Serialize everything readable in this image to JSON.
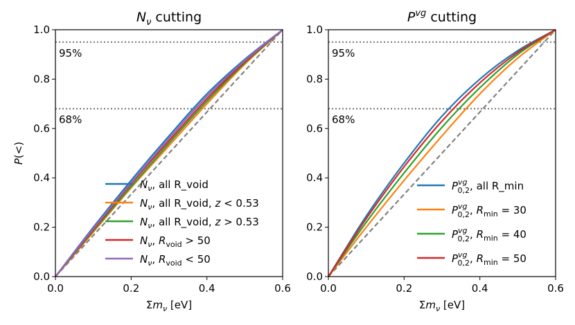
{
  "chart_data": [
    {
      "type": "line",
      "title": "N_ν cutting",
      "title_parts": {
        "main": "N",
        "sub": "ν",
        "rest": " cutting"
      },
      "xlabel": "Σm_ν [eV]",
      "ylabel": "P(<)",
      "xlim": [
        0.0,
        0.6
      ],
      "ylim": [
        0.0,
        1.0
      ],
      "xticks": [
        "0.0",
        "0.2",
        "0.4",
        "0.6"
      ],
      "yticks": [
        "0.0",
        "0.2",
        "0.4",
        "0.6",
        "0.8",
        "1.0"
      ],
      "grid": false,
      "legend_position": "lower-right",
      "hlines": [
        {
          "y": 0.95,
          "label": "95%",
          "color": "#808080",
          "style": "dotted"
        },
        {
          "y": 0.68,
          "label": "68%",
          "color": "#808080",
          "style": "dotted"
        }
      ],
      "reference_line": {
        "x": [
          0.0,
          0.6
        ],
        "y": [
          0.0,
          1.0
        ],
        "color": "#808080",
        "style": "dashed"
      },
      "x": [
        0.0,
        0.1,
        0.2,
        0.3,
        0.4,
        0.5,
        0.6
      ],
      "series": [
        {
          "name": "N_ν, all R_void",
          "color": "#1f77b4",
          "values": [
            0.0,
            0.2,
            0.39,
            0.57,
            0.74,
            0.88,
            1.0
          ]
        },
        {
          "name": "N_ν, all R_void, z < 0.53",
          "color": "#ff7f0e",
          "values": [
            0.0,
            0.18,
            0.36,
            0.53,
            0.7,
            0.86,
            1.0
          ]
        },
        {
          "name": "N_ν, all R_void, z > 0.53",
          "color": "#2ca02c",
          "values": [
            0.0,
            0.185,
            0.365,
            0.54,
            0.71,
            0.865,
            1.0
          ]
        },
        {
          "name": "N_ν, R_void > 50",
          "color": "#d62728",
          "values": [
            0.0,
            0.19,
            0.375,
            0.55,
            0.72,
            0.87,
            1.0
          ]
        },
        {
          "name": "N_ν, R_void < 50",
          "color": "#9467bd",
          "values": [
            0.0,
            0.195,
            0.38,
            0.56,
            0.73,
            0.875,
            1.0
          ]
        }
      ]
    },
    {
      "type": "line",
      "title": "P^vg cutting",
      "title_parts": {
        "main": "P",
        "sup": "vg",
        "rest": " cutting"
      },
      "xlabel": "Σm_ν [eV]",
      "ylabel": "",
      "xlim": [
        0.0,
        0.6
      ],
      "ylim": [
        0.0,
        1.0
      ],
      "xticks": [
        "0.0",
        "0.2",
        "0.4",
        "0.6"
      ],
      "yticks": [
        "0.0",
        "0.2",
        "0.4",
        "0.6",
        "0.8",
        "1.0"
      ],
      "grid": false,
      "legend_position": "lower-right",
      "hlines": [
        {
          "y": 0.95,
          "label": "95%",
          "color": "#808080",
          "style": "dotted"
        },
        {
          "y": 0.68,
          "label": "68%",
          "color": "#808080",
          "style": "dotted"
        }
      ],
      "reference_line": {
        "x": [
          0.0,
          0.6
        ],
        "y": [
          0.0,
          1.0
        ],
        "color": "#808080",
        "style": "dashed"
      },
      "x": [
        0.0,
        0.1,
        0.2,
        0.3,
        0.4,
        0.5,
        0.6
      ],
      "series": [
        {
          "name": "P^vg_0,2, all R_min",
          "color": "#1f77b4",
          "values": [
            0.0,
            0.245,
            0.46,
            0.65,
            0.8,
            0.915,
            1.0
          ]
        },
        {
          "name": "P^vg_0,2, R_min = 30",
          "color": "#ff7f0e",
          "values": [
            0.0,
            0.2,
            0.39,
            0.57,
            0.74,
            0.885,
            1.0
          ]
        },
        {
          "name": "P^vg_0,2, R_min = 40",
          "color": "#2ca02c",
          "values": [
            0.0,
            0.22,
            0.42,
            0.605,
            0.765,
            0.9,
            1.0
          ]
        },
        {
          "name": "P^vg_0,2, R_min = 50",
          "color": "#d62728",
          "values": [
            0.0,
            0.235,
            0.445,
            0.63,
            0.785,
            0.908,
            1.0
          ]
        }
      ]
    }
  ]
}
